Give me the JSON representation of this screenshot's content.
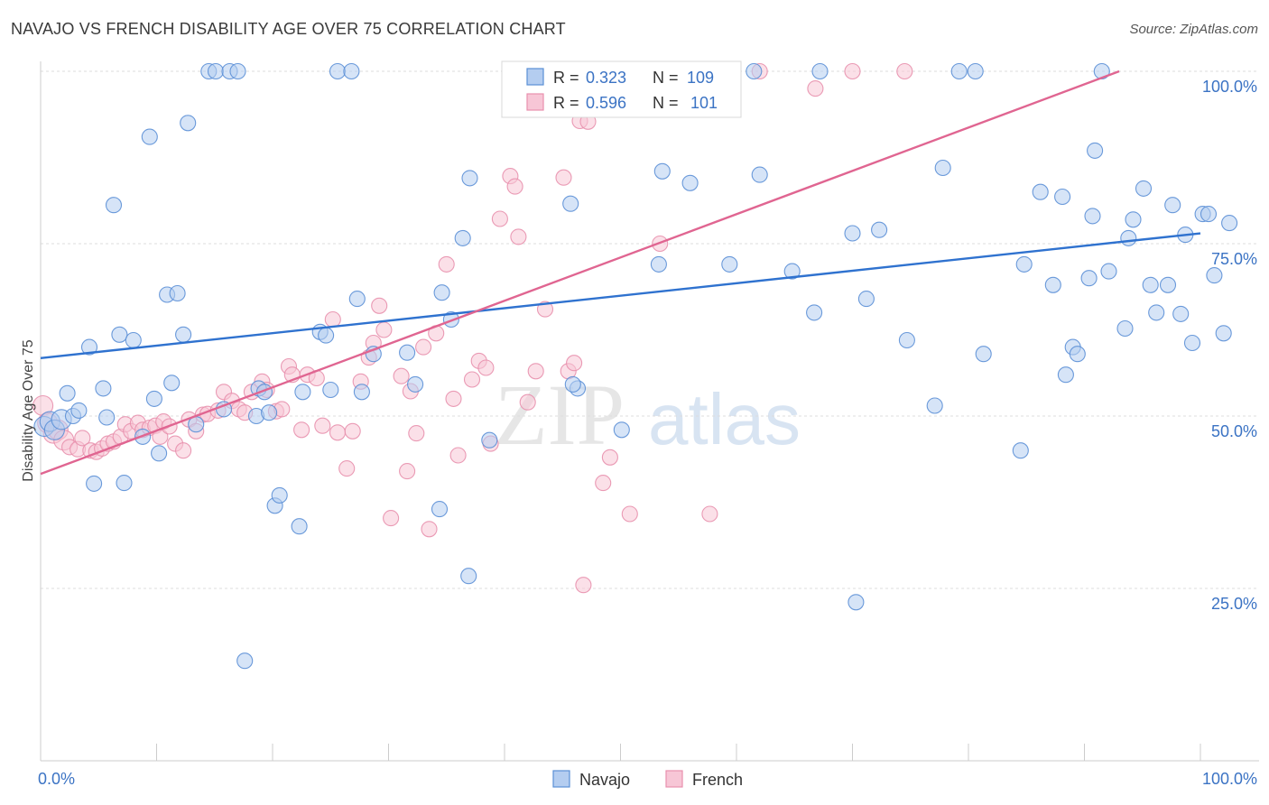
{
  "title": "NAVAJO VS FRENCH DISABILITY AGE OVER 75 CORRELATION CHART",
  "source": "Source: ZipAtlas.com",
  "watermark": {
    "zip": "ZIP",
    "atlas": "atlas"
  },
  "colors": {
    "navajo": "#5b8fd6",
    "navajo_fill": "#b4cdf0",
    "navajo_line": "#2f72cf",
    "french": "#e890ad",
    "french_fill": "#f7c6d6",
    "french_line": "#e06591",
    "axis_label": "#3b73c4",
    "grid": "#dddddd"
  },
  "chart_data": {
    "type": "scatter",
    "ylabel": "Disability Age Over 75",
    "xlim": [
      0,
      100
    ],
    "ylim": [
      0,
      102
    ],
    "x_tick_labels": [
      "0.0%",
      "100.0%"
    ],
    "y_ticks": [
      25,
      50,
      75,
      100
    ],
    "y_tick_labels": [
      "25.0%",
      "50.0%",
      "75.0%",
      "100.0%"
    ],
    "grid": true,
    "legend_top": [
      {
        "r_label": "R =",
        "r_value": "0.323",
        "n_label": "N =",
        "n_value": "109"
      },
      {
        "r_label": "R =",
        "r_value": "0.596",
        "n_label": "N =",
        "n_value": "101"
      }
    ],
    "legend_bottom": [
      "Navajo",
      "French"
    ],
    "series": [
      {
        "name": "Navajo",
        "trend": [
          [
            0,
            58.4
          ],
          [
            100,
            76.5
          ]
        ],
        "points": [
          [
            0.3,
            48.5
          ],
          [
            0.8,
            49.2
          ],
          [
            1.2,
            48.0
          ],
          [
            1.8,
            49.5
          ],
          [
            2.3,
            53.3
          ],
          [
            2.8,
            50.0
          ],
          [
            3.3,
            50.8
          ],
          [
            4.2,
            60.0
          ],
          [
            4.6,
            40.2
          ],
          [
            5.4,
            54.0
          ],
          [
            5.7,
            49.8
          ],
          [
            6.3,
            80.6
          ],
          [
            7.2,
            40.3
          ],
          [
            6.8,
            61.8
          ],
          [
            8.0,
            61.0
          ],
          [
            8.8,
            47.0
          ],
          [
            9.4,
            90.5
          ],
          [
            9.8,
            52.5
          ],
          [
            10.2,
            44.6
          ],
          [
            10.9,
            67.6
          ],
          [
            11.3,
            54.8
          ],
          [
            11.8,
            67.8
          ],
          [
            12.3,
            61.8
          ],
          [
            12.7,
            92.5
          ],
          [
            13.4,
            48.8
          ],
          [
            14.5,
            100
          ],
          [
            15.1,
            100
          ],
          [
            16.3,
            100
          ],
          [
            15.8,
            51.0
          ],
          [
            17.0,
            100
          ],
          [
            17.6,
            14.5
          ],
          [
            18.8,
            54.0
          ],
          [
            18.6,
            50.0
          ],
          [
            19.3,
            53.5
          ],
          [
            19.7,
            50.5
          ],
          [
            20.2,
            37.0
          ],
          [
            20.6,
            38.5
          ],
          [
            22.3,
            34.0
          ],
          [
            22.6,
            53.5
          ],
          [
            24.1,
            62.2
          ],
          [
            24.6,
            61.7
          ],
          [
            25.0,
            53.8
          ],
          [
            25.6,
            100
          ],
          [
            26.8,
            100
          ],
          [
            27.3,
            67.0
          ],
          [
            27.7,
            53.5
          ],
          [
            28.7,
            59.0
          ],
          [
            31.6,
            59.2
          ],
          [
            32.3,
            54.6
          ],
          [
            34.4,
            36.5
          ],
          [
            34.6,
            67.9
          ],
          [
            35.4,
            64.0
          ],
          [
            36.4,
            75.8
          ],
          [
            36.9,
            26.8
          ],
          [
            37.0,
            84.5
          ],
          [
            38.7,
            46.5
          ],
          [
            40.8,
            100
          ],
          [
            41.3,
            100
          ],
          [
            46.3,
            54.0
          ],
          [
            45.9,
            54.6
          ],
          [
            45.7,
            80.8
          ],
          [
            48.0,
            100
          ],
          [
            49.0,
            100
          ],
          [
            50.1,
            48.0
          ],
          [
            53.3,
            72.0
          ],
          [
            53.6,
            85.5
          ],
          [
            56.0,
            83.8
          ],
          [
            57.3,
            100
          ],
          [
            59.4,
            72.0
          ],
          [
            61.5,
            100
          ],
          [
            62.0,
            85.0
          ],
          [
            64.8,
            71.0
          ],
          [
            66.7,
            65.0
          ],
          [
            67.2,
            100
          ],
          [
            70.0,
            76.5
          ],
          [
            70.3,
            23.0
          ],
          [
            71.2,
            67.0
          ],
          [
            72.3,
            77.0
          ],
          [
            74.7,
            61.0
          ],
          [
            77.1,
            51.5
          ],
          [
            77.8,
            86.0
          ],
          [
            79.2,
            100
          ],
          [
            80.6,
            100
          ],
          [
            81.3,
            59.0
          ],
          [
            84.5,
            45.0
          ],
          [
            84.8,
            72.0
          ],
          [
            86.2,
            82.5
          ],
          [
            87.3,
            69.0
          ],
          [
            88.1,
            81.8
          ],
          [
            89.0,
            60.0
          ],
          [
            88.4,
            56.0
          ],
          [
            89.4,
            59.0
          ],
          [
            90.4,
            70.0
          ],
          [
            90.7,
            79.0
          ],
          [
            90.9,
            88.5
          ],
          [
            91.5,
            100
          ],
          [
            92.1,
            71.0
          ],
          [
            93.5,
            62.7
          ],
          [
            93.8,
            75.8
          ],
          [
            94.2,
            78.5
          ],
          [
            95.1,
            83.0
          ],
          [
            95.7,
            69.0
          ],
          [
            96.2,
            65.0
          ],
          [
            97.2,
            69.0
          ],
          [
            97.6,
            80.6
          ],
          [
            98.3,
            64.8
          ],
          [
            98.7,
            76.3
          ],
          [
            99.3,
            60.6
          ],
          [
            100.2,
            79.3
          ],
          [
            100.7,
            79.3
          ],
          [
            101.2,
            70.4
          ],
          [
            102.0,
            62.0
          ],
          [
            102.5,
            78.0
          ]
        ]
      },
      {
        "name": "French",
        "trend": [
          [
            0,
            41.6
          ],
          [
            93,
            100
          ]
        ],
        "points": [
          [
            0.2,
            51.5
          ],
          [
            0.6,
            49.0
          ],
          [
            1.1,
            47.5
          ],
          [
            1.5,
            48.0
          ],
          [
            2.0,
            46.5
          ],
          [
            2.5,
            45.5
          ],
          [
            3.2,
            45.2
          ],
          [
            3.6,
            46.8
          ],
          [
            4.3,
            45.0
          ],
          [
            4.8,
            44.8
          ],
          [
            5.3,
            45.3
          ],
          [
            5.8,
            46.0
          ],
          [
            6.3,
            46.3
          ],
          [
            6.9,
            47.0
          ],
          [
            7.3,
            48.8
          ],
          [
            7.8,
            47.8
          ],
          [
            8.4,
            49.0
          ],
          [
            8.8,
            48.0
          ],
          [
            9.4,
            48.3
          ],
          [
            9.9,
            48.6
          ],
          [
            10.3,
            47.0
          ],
          [
            10.6,
            49.2
          ],
          [
            11.1,
            48.5
          ],
          [
            11.6,
            46.0
          ],
          [
            12.3,
            45.0
          ],
          [
            12.8,
            49.5
          ],
          [
            13.4,
            47.8
          ],
          [
            14.0,
            50.2
          ],
          [
            14.4,
            50.3
          ],
          [
            15.3,
            50.8
          ],
          [
            15.8,
            53.5
          ],
          [
            16.5,
            52.2
          ],
          [
            17.1,
            51.0
          ],
          [
            17.6,
            50.5
          ],
          [
            18.2,
            53.5
          ],
          [
            19.1,
            55.0
          ],
          [
            19.5,
            53.8
          ],
          [
            20.3,
            50.7
          ],
          [
            20.8,
            51.0
          ],
          [
            21.4,
            57.2
          ],
          [
            21.7,
            56.0
          ],
          [
            22.5,
            48.0
          ],
          [
            23.0,
            56.0
          ],
          [
            23.8,
            55.5
          ],
          [
            24.3,
            48.6
          ],
          [
            25.2,
            64.0
          ],
          [
            25.6,
            47.6
          ],
          [
            26.4,
            42.4
          ],
          [
            26.9,
            47.8
          ],
          [
            27.6,
            55.0
          ],
          [
            28.3,
            58.5
          ],
          [
            28.7,
            60.6
          ],
          [
            29.2,
            66.0
          ],
          [
            29.6,
            62.5
          ],
          [
            30.2,
            35.2
          ],
          [
            31.1,
            55.8
          ],
          [
            31.6,
            42.0
          ],
          [
            31.9,
            53.6
          ],
          [
            32.4,
            47.5
          ],
          [
            33.0,
            60.0
          ],
          [
            33.5,
            33.6
          ],
          [
            34.1,
            62.0
          ],
          [
            35.0,
            72.0
          ],
          [
            35.6,
            52.5
          ],
          [
            36.0,
            44.3
          ],
          [
            37.2,
            55.3
          ],
          [
            37.8,
            58.0
          ],
          [
            38.4,
            57.0
          ],
          [
            38.8,
            46.0
          ],
          [
            39.6,
            78.6
          ],
          [
            40.5,
            84.8
          ],
          [
            40.9,
            83.3
          ],
          [
            41.2,
            76.0
          ],
          [
            42.0,
            52.0
          ],
          [
            42.7,
            56.5
          ],
          [
            43.5,
            65.5
          ],
          [
            44.0,
            100
          ],
          [
            45.1,
            84.6
          ],
          [
            45.5,
            56.5
          ],
          [
            46.0,
            57.7
          ],
          [
            46.5,
            92.8
          ],
          [
            46.8,
            25.5
          ],
          [
            47.2,
            92.7
          ],
          [
            48.5,
            40.3
          ],
          [
            49.1,
            44.0
          ],
          [
            50.8,
            35.8
          ],
          [
            53.4,
            75.0
          ],
          [
            54.3,
            100
          ],
          [
            57.7,
            35.8
          ],
          [
            62.0,
            100
          ],
          [
            66.8,
            97.5
          ],
          [
            70.0,
            100
          ],
          [
            74.5,
            100
          ]
        ]
      }
    ]
  }
}
